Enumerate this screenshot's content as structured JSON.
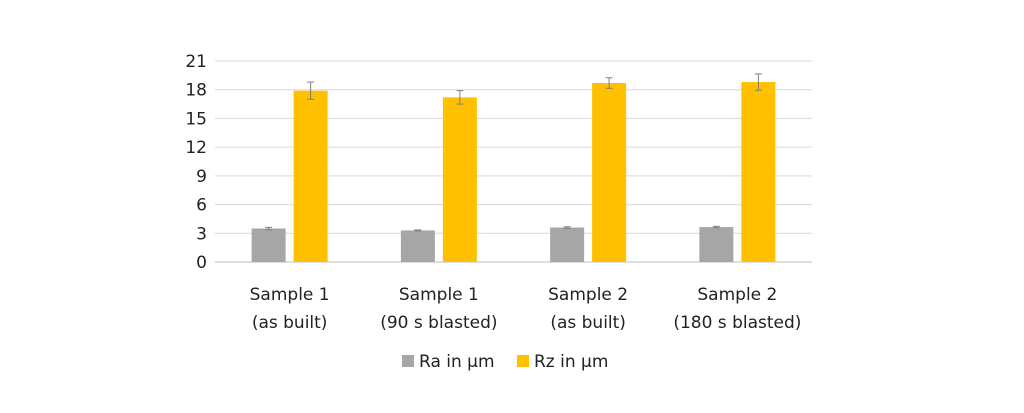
{
  "chart_data": {
    "type": "bar",
    "title": "",
    "xlabel": "",
    "ylabel": "",
    "categories": [
      [
        "Sample 1",
        "(as built)"
      ],
      [
        "Sample 1",
        "(90 s blasted)"
      ],
      [
        "Sample 2",
        "(as built)"
      ],
      [
        "Sample 2",
        "(180 s blasted)"
      ]
    ],
    "series": [
      {
        "name": "Ra in µm",
        "color": "#a6a6a6",
        "values": [
          3.5,
          3.3,
          3.6,
          3.65
        ],
        "errors": [
          0.12,
          0.05,
          0.08,
          0.08
        ]
      },
      {
        "name": "Rz in µm",
        "color": "#ffc000",
        "values": [
          17.9,
          17.2,
          18.7,
          18.8
        ],
        "errors": [
          0.9,
          0.7,
          0.55,
          0.85
        ]
      }
    ],
    "ylim": [
      0,
      21
    ],
    "yticks": [
      0,
      3,
      6,
      9,
      12,
      15,
      18,
      21
    ],
    "grid": true,
    "legend": "bottom"
  }
}
